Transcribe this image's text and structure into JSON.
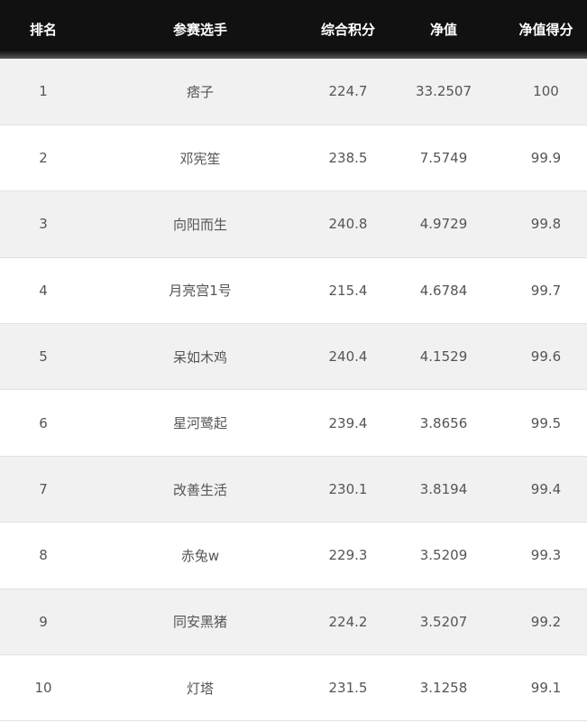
{
  "headers": [
    "排名",
    "参赛选手",
    "综合积分",
    "净值",
    "净值得分"
  ],
  "rows": [
    {
      "rank": "1",
      "name": "痞子",
      "score": "224.7",
      "nav": "33.2507",
      "nav_score": "100"
    },
    {
      "rank": "2",
      "name": "邓宪笙",
      "score": "238.5",
      "nav": "7.5749",
      "nav_score": "99.9"
    },
    {
      "rank": "3",
      "name": "向阳而生",
      "score": "240.8",
      "nav": "4.9729",
      "nav_score": "99.8"
    },
    {
      "rank": "4",
      "name": "月亮宫1号",
      "score": "215.4",
      "nav": "4.6784",
      "nav_score": "99.7"
    },
    {
      "rank": "5",
      "name": "呆如木鸡",
      "score": "240.4",
      "nav": "4.1529",
      "nav_score": "99.6"
    },
    {
      "rank": "6",
      "name": "星河鹭起",
      "score": "239.4",
      "nav": "3.8656",
      "nav_score": "99.5"
    },
    {
      "rank": "7",
      "name": "改善生活",
      "score": "230.1",
      "nav": "3.8194",
      "nav_score": "99.4"
    },
    {
      "rank": "8",
      "name": "赤兔w",
      "score": "229.3",
      "nav": "3.5209",
      "nav_score": "99.3"
    },
    {
      "rank": "9",
      "name": "同安黑猪",
      "score": "224.2",
      "nav": "3.5207",
      "nav_score": "99.2"
    },
    {
      "rank": "10",
      "name": "灯塔",
      "score": "231.5",
      "nav": "3.1258",
      "nav_score": "99.1"
    }
  ]
}
